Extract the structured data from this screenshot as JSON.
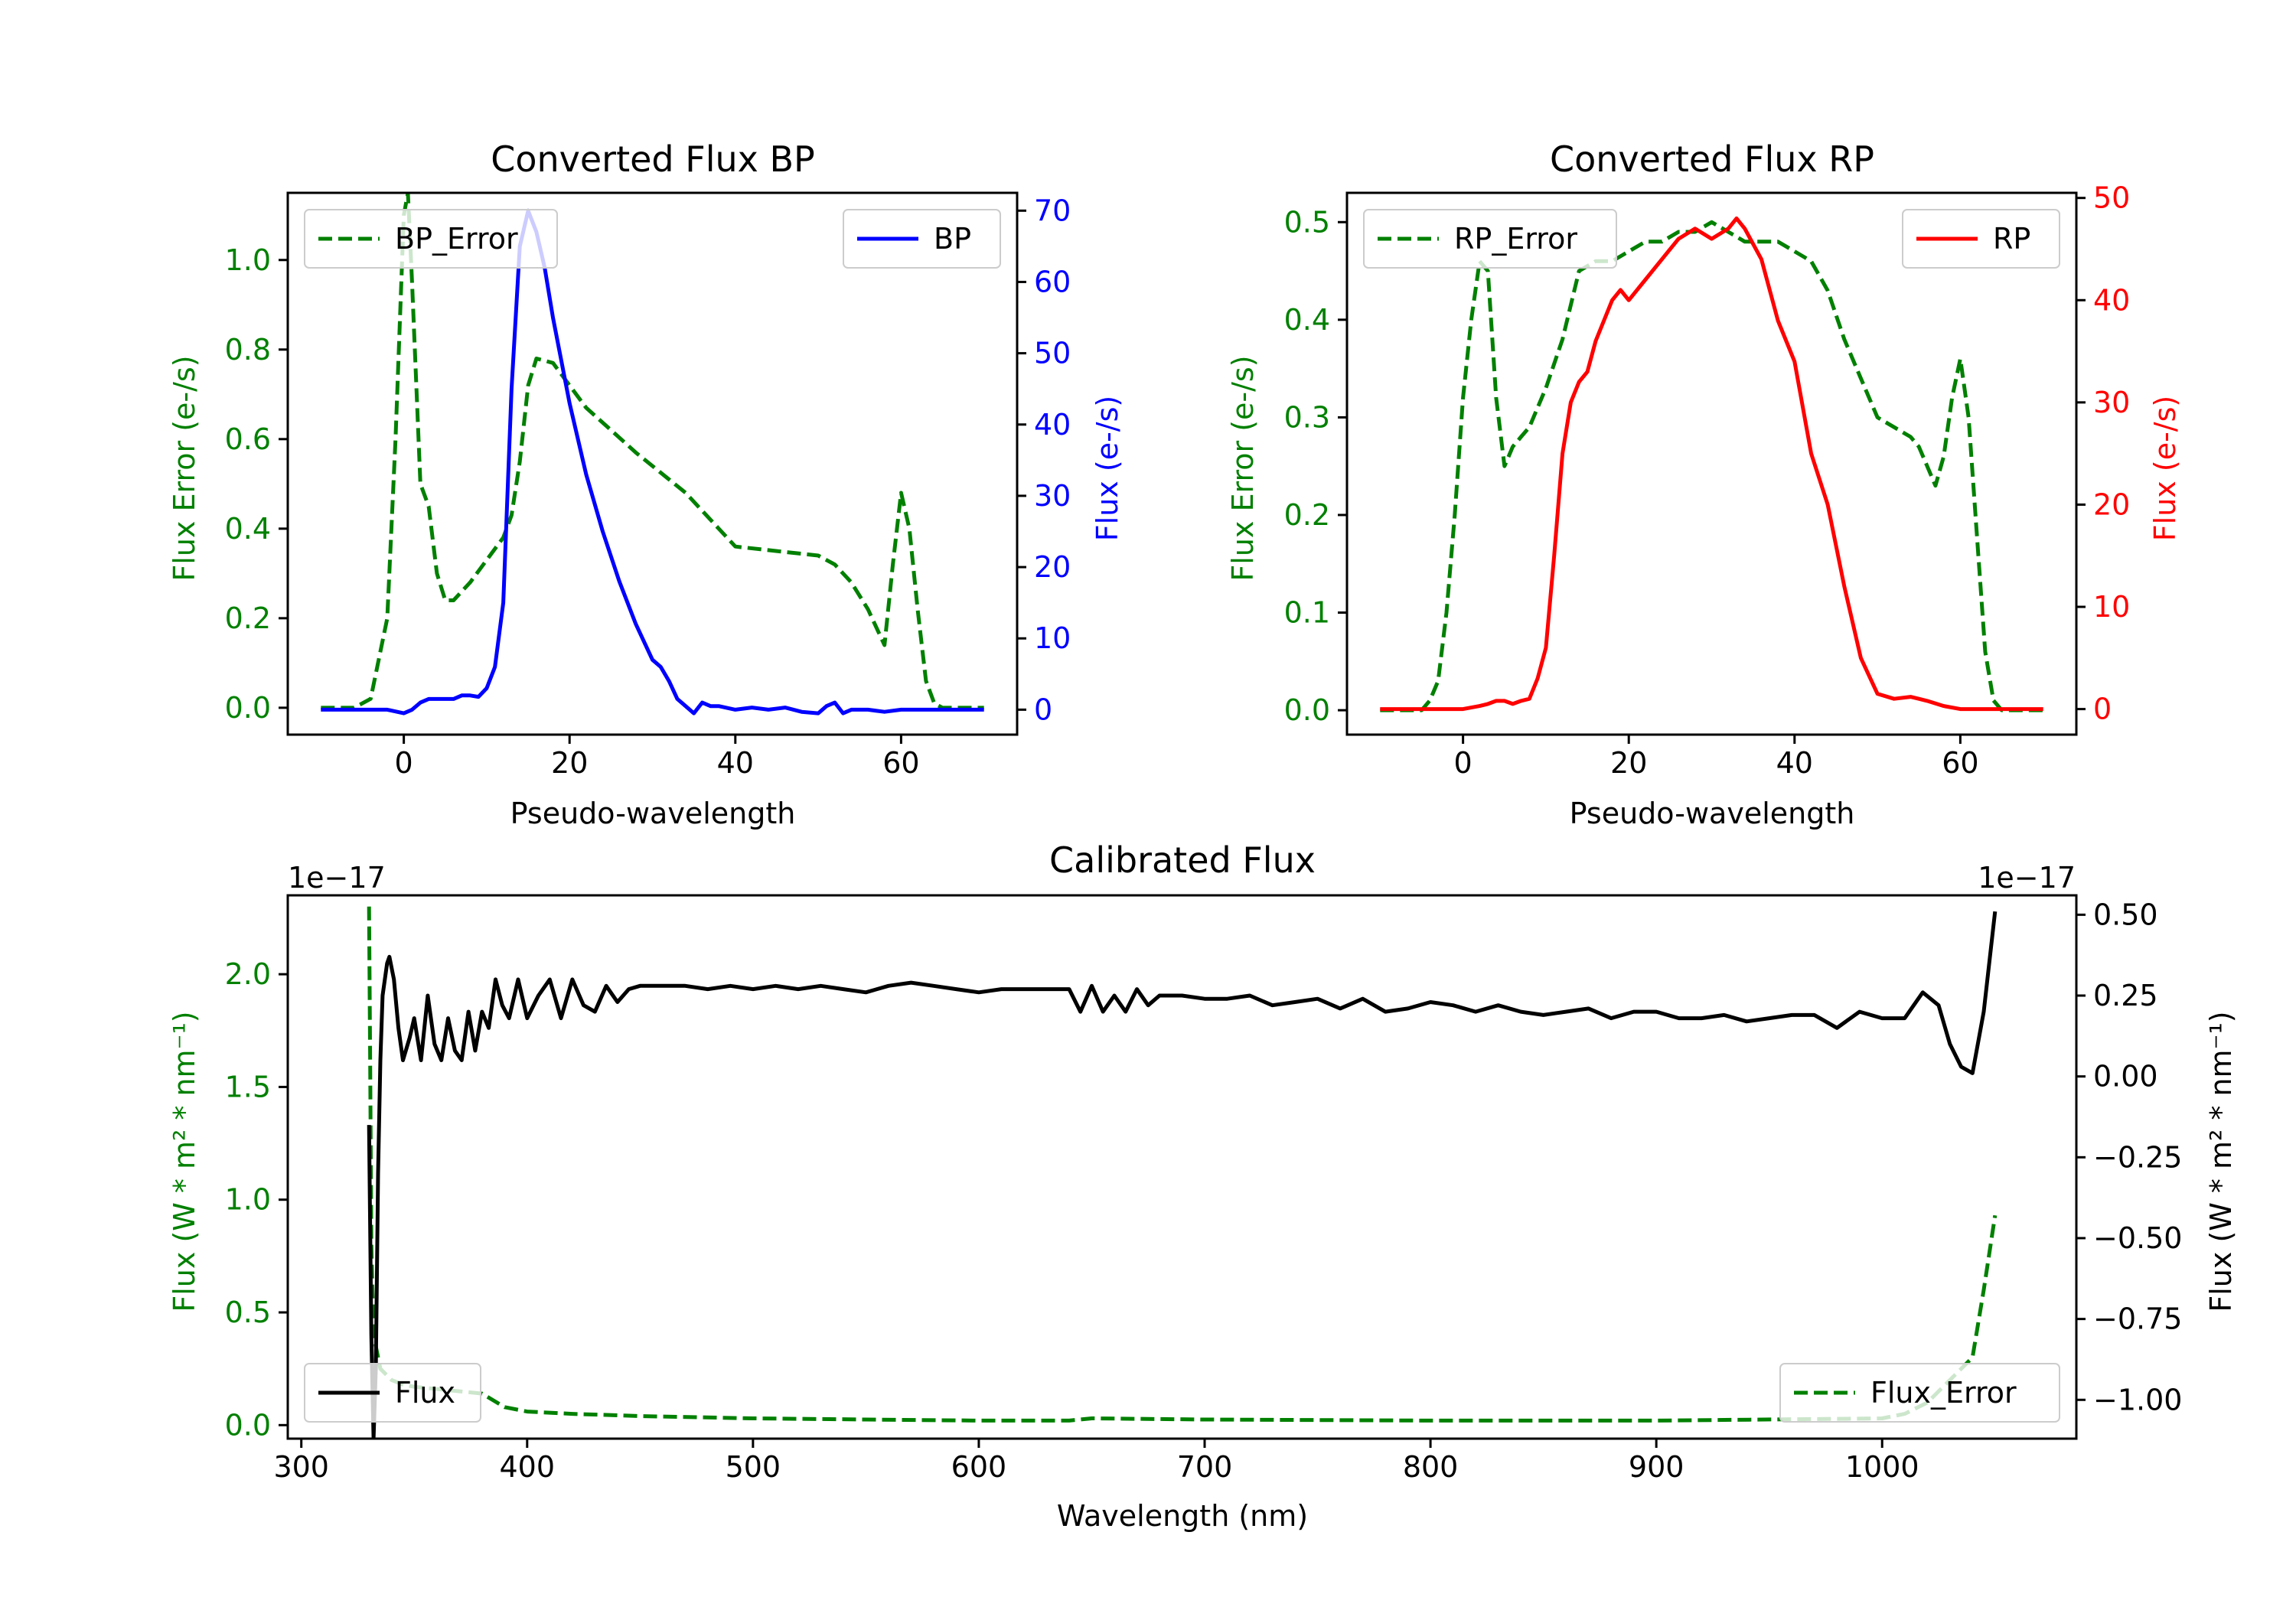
{
  "colors": {
    "bp": "#0000ff",
    "rp": "#ff0000",
    "err": "#008000",
    "flux": "#000000"
  },
  "chart_data": [
    {
      "type": "line",
      "id": "bp",
      "title": "Converted Flux BP",
      "xlabel": "Pseudo-wavelength",
      "ylabel_left": "Flux Error (e-/s)",
      "ylabel_right": "Flux (e-/s)",
      "xlim": [
        -14,
        74
      ],
      "ylim_left": [
        -0.06,
        1.15
      ],
      "ylim_right": [
        -3.5,
        72.5
      ],
      "xticks": [
        0,
        20,
        40,
        60
      ],
      "yticks_left": [
        "0.0",
        "0.2",
        "0.4",
        "0.6",
        "0.8",
        "1.0"
      ],
      "yticks_right": [
        "0",
        "10",
        "20",
        "30",
        "40",
        "50",
        "60",
        "70"
      ],
      "legend_left": "BP_Error",
      "legend_right": "BP",
      "series": [
        {
          "name": "BP_Error",
          "axis": "left",
          "style": "dashed",
          "color": "err",
          "x": [
            -10,
            -6,
            -4,
            -2,
            -1,
            0,
            0.5,
            1,
            2,
            3,
            4,
            5,
            6,
            8,
            10,
            12,
            13,
            14,
            15,
            16,
            18,
            20,
            22,
            25,
            28,
            30,
            32,
            34,
            36,
            38,
            40,
            45,
            50,
            52,
            54,
            56,
            57,
            58,
            59,
            60,
            61,
            62,
            63,
            64,
            65,
            70
          ],
          "y": [
            0,
            0,
            0.02,
            0.2,
            0.6,
            1.1,
            1.15,
            0.95,
            0.5,
            0.45,
            0.3,
            0.24,
            0.24,
            0.28,
            0.33,
            0.38,
            0.43,
            0.55,
            0.72,
            0.78,
            0.77,
            0.72,
            0.67,
            0.62,
            0.57,
            0.54,
            0.51,
            0.48,
            0.44,
            0.4,
            0.36,
            0.35,
            0.34,
            0.32,
            0.28,
            0.22,
            0.18,
            0.14,
            0.32,
            0.48,
            0.4,
            0.22,
            0.06,
            0.01,
            0,
            0
          ]
        },
        {
          "name": "BP",
          "axis": "right",
          "style": "solid",
          "color": "bp",
          "x": [
            -10,
            -2,
            0,
            1,
            2,
            3,
            4,
            5,
            6,
            7,
            8,
            9,
            10,
            11,
            12,
            13,
            14,
            15,
            16,
            17,
            18,
            20,
            22,
            24,
            26,
            28,
            30,
            31,
            32,
            33,
            34,
            35,
            36,
            37,
            38,
            40,
            42,
            44,
            46,
            48,
            50,
            51,
            52,
            53,
            54,
            56,
            58,
            60,
            62,
            70
          ],
          "y": [
            0,
            0,
            -0.5,
            0,
            1,
            1.5,
            1.5,
            1.5,
            1.5,
            2,
            2,
            1.8,
            3,
            6,
            15,
            45,
            65,
            70,
            67,
            62,
            55,
            43,
            33,
            25,
            18,
            12,
            7,
            6,
            4,
            1.5,
            0.5,
            -0.5,
            1,
            0.5,
            0.5,
            0,
            0.3,
            0,
            0.3,
            -0.3,
            -0.5,
            0.5,
            1,
            -0.5,
            0,
            0,
            -0.3,
            0,
            0,
            0
          ]
        }
      ]
    },
    {
      "type": "line",
      "id": "rp",
      "title": "Converted Flux RP",
      "xlabel": "Pseudo-wavelength",
      "ylabel_left": "Flux Error (e-/s)",
      "ylabel_right": "Flux (e-/s)",
      "xlim": [
        -14,
        74
      ],
      "ylim_left": [
        -0.025,
        0.53
      ],
      "ylim_right": [
        -2.5,
        50.5
      ],
      "xticks": [
        0,
        20,
        40,
        60
      ],
      "yticks_left": [
        "0.0",
        "0.1",
        "0.2",
        "0.3",
        "0.4",
        "0.5"
      ],
      "yticks_right": [
        "0",
        "10",
        "20",
        "30",
        "40",
        "50"
      ],
      "legend_left": "RP_Error",
      "legend_right": "RP",
      "series": [
        {
          "name": "RP_Error",
          "axis": "left",
          "style": "dashed",
          "color": "err",
          "x": [
            -10,
            -5,
            -4,
            -3,
            -2,
            -1,
            0,
            1,
            2,
            3,
            4,
            5,
            6,
            7,
            8,
            9,
            10,
            12,
            14,
            16,
            18,
            20,
            22,
            24,
            26,
            28,
            30,
            32,
            34,
            36,
            38,
            40,
            42,
            44,
            46,
            48,
            50,
            52,
            54,
            55,
            56,
            57,
            58,
            59,
            60,
            61,
            62,
            63,
            64,
            65,
            70
          ],
          "y": [
            0,
            0,
            0.01,
            0.03,
            0.1,
            0.2,
            0.32,
            0.4,
            0.46,
            0.45,
            0.32,
            0.25,
            0.27,
            0.28,
            0.29,
            0.31,
            0.33,
            0.38,
            0.45,
            0.46,
            0.46,
            0.47,
            0.48,
            0.48,
            0.49,
            0.49,
            0.5,
            0.49,
            0.48,
            0.48,
            0.48,
            0.47,
            0.46,
            0.43,
            0.38,
            0.34,
            0.3,
            0.29,
            0.28,
            0.27,
            0.25,
            0.23,
            0.26,
            0.32,
            0.36,
            0.3,
            0.18,
            0.06,
            0.01,
            0,
            0
          ]
        },
        {
          "name": "RP",
          "axis": "right",
          "style": "solid",
          "color": "rp",
          "x": [
            -10,
            -3,
            0,
            2,
            3,
            4,
            5,
            6,
            7,
            8,
            9,
            10,
            11,
            12,
            13,
            14,
            15,
            16,
            17,
            18,
            19,
            20,
            22,
            24,
            26,
            28,
            30,
            32,
            33,
            34,
            36,
            38,
            40,
            42,
            44,
            46,
            48,
            50,
            52,
            54,
            55,
            56,
            58,
            60,
            62,
            64,
            70
          ],
          "y": [
            0,
            0,
            0,
            0.3,
            0.5,
            0.8,
            0.8,
            0.5,
            0.8,
            1,
            3,
            6,
            15,
            25,
            30,
            32,
            33,
            36,
            38,
            40,
            41,
            40,
            42,
            44,
            46,
            47,
            46,
            47,
            48,
            47,
            44,
            38,
            34,
            25,
            20,
            12,
            5,
            1.5,
            1,
            1.2,
            1,
            0.8,
            0.3,
            0,
            0,
            0,
            0
          ]
        }
      ]
    },
    {
      "type": "line",
      "id": "calibrated",
      "title": "Calibrated Flux",
      "xlabel": "Wavelength (nm)",
      "ylabel_left": "Flux (W * m² * nm⁻¹)",
      "ylabel_right": "Flux (W * m² * nm⁻¹)",
      "offset_left": "1e−17",
      "offset_right": "1e−17",
      "xlim": [
        294,
        1086
      ],
      "ylim_left": [
        -0.06,
        2.35
      ],
      "ylim_right": [
        -1.12,
        0.56
      ],
      "xticks": [
        300,
        400,
        500,
        600,
        700,
        800,
        900,
        1000
      ],
      "yticks_left": [
        "0.0",
        "0.5",
        "1.0",
        "1.5",
        "2.0"
      ],
      "yticks_right": [
        "−1.00",
        "−0.75",
        "−0.50",
        "−0.25",
        "0.00",
        "0.25",
        "0.50"
      ],
      "legend_left": "Flux",
      "legend_right": "Flux_Error",
      "series": [
        {
          "name": "Flux_Error",
          "axis": "left",
          "style": "dashed",
          "color": "err",
          "x": [
            330,
            330.5,
            331,
            332,
            335,
            340,
            345,
            350,
            360,
            370,
            380,
            390,
            400,
            420,
            450,
            500,
            550,
            600,
            640,
            650,
            700,
            800,
            900,
            1000,
            1010,
            1020,
            1030,
            1040,
            1045,
            1050
          ],
          "y": [
            2.3,
            1.6,
            0.8,
            0.4,
            0.25,
            0.2,
            0.18,
            0.17,
            0.16,
            0.15,
            0.14,
            0.08,
            0.06,
            0.05,
            0.04,
            0.03,
            0.025,
            0.02,
            0.02,
            0.03,
            0.025,
            0.02,
            0.02,
            0.03,
            0.05,
            0.1,
            0.2,
            0.3,
            0.6,
            0.93
          ]
        },
        {
          "name": "Flux",
          "axis": "right",
          "style": "solid",
          "color": "flux",
          "x": [
            330,
            331,
            332,
            333,
            334,
            335,
            336,
            338,
            339,
            341,
            343,
            345,
            348,
            350,
            353,
            356,
            359,
            362,
            365,
            368,
            371,
            374,
            377,
            380,
            383,
            386,
            389,
            392,
            396,
            400,
            405,
            410,
            415,
            420,
            425,
            430,
            435,
            440,
            445,
            450,
            460,
            470,
            480,
            490,
            500,
            510,
            520,
            530,
            540,
            550,
            560,
            570,
            580,
            590,
            600,
            610,
            620,
            630,
            640,
            645,
            650,
            655,
            660,
            665,
            670,
            675,
            680,
            690,
            700,
            710,
            720,
            730,
            740,
            750,
            760,
            770,
            780,
            790,
            800,
            810,
            820,
            830,
            840,
            850,
            860,
            870,
            880,
            890,
            900,
            910,
            920,
            930,
            940,
            950,
            960,
            970,
            980,
            990,
            1000,
            1010,
            1018,
            1025,
            1030,
            1035,
            1040,
            1045,
            1050
          ],
          "y": [
            -0.15,
            -0.8,
            -1.12,
            -0.9,
            -0.3,
            0.05,
            0.25,
            0.35,
            0.37,
            0.3,
            0.15,
            0.05,
            0.12,
            0.18,
            0.05,
            0.25,
            0.1,
            0.05,
            0.18,
            0.08,
            0.05,
            0.2,
            0.08,
            0.2,
            0.15,
            0.3,
            0.22,
            0.18,
            0.3,
            0.18,
            0.25,
            0.3,
            0.18,
            0.3,
            0.22,
            0.2,
            0.28,
            0.23,
            0.27,
            0.28,
            0.28,
            0.28,
            0.27,
            0.28,
            0.27,
            0.28,
            0.27,
            0.28,
            0.27,
            0.26,
            0.28,
            0.29,
            0.28,
            0.27,
            0.26,
            0.27,
            0.27,
            0.27,
            0.27,
            0.2,
            0.28,
            0.2,
            0.25,
            0.2,
            0.27,
            0.22,
            0.25,
            0.25,
            0.24,
            0.24,
            0.25,
            0.22,
            0.23,
            0.24,
            0.21,
            0.24,
            0.2,
            0.21,
            0.23,
            0.22,
            0.2,
            0.22,
            0.2,
            0.19,
            0.2,
            0.21,
            0.18,
            0.2,
            0.2,
            0.18,
            0.18,
            0.19,
            0.17,
            0.18,
            0.19,
            0.19,
            0.15,
            0.2,
            0.18,
            0.18,
            0.26,
            0.22,
            0.1,
            0.03,
            0.01,
            0.2,
            0.51
          ]
        }
      ]
    }
  ]
}
